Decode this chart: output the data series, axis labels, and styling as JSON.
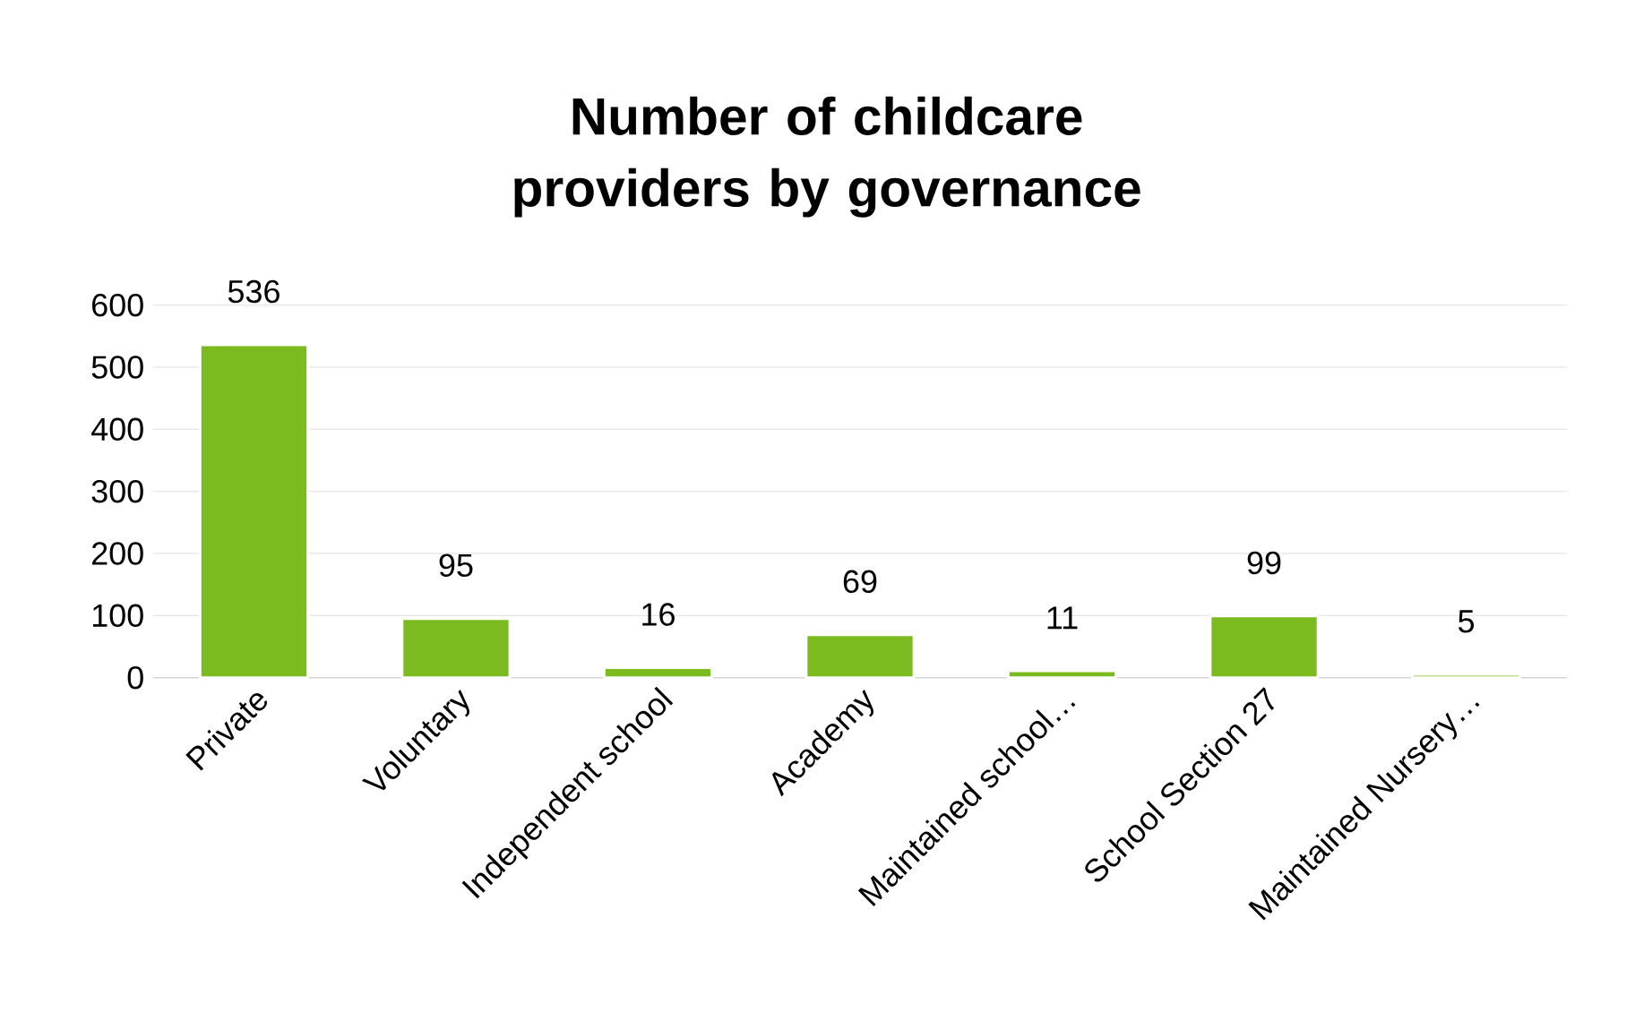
{
  "chart_data": {
    "type": "bar",
    "title": "Number of childcare providers by governance",
    "categories": [
      "Private",
      "Voluntary",
      "Independent school",
      "Academy",
      "Maintained school…",
      "School Section 27",
      "Maintained Nursery…"
    ],
    "values": [
      536,
      95,
      16,
      69,
      11,
      99,
      5
    ],
    "color": "#7cbb1f",
    "ylim": [
      0,
      600
    ],
    "yticks": [
      0,
      100,
      200,
      300,
      400,
      500,
      600
    ],
    "grid": "y",
    "data_labels": true
  }
}
